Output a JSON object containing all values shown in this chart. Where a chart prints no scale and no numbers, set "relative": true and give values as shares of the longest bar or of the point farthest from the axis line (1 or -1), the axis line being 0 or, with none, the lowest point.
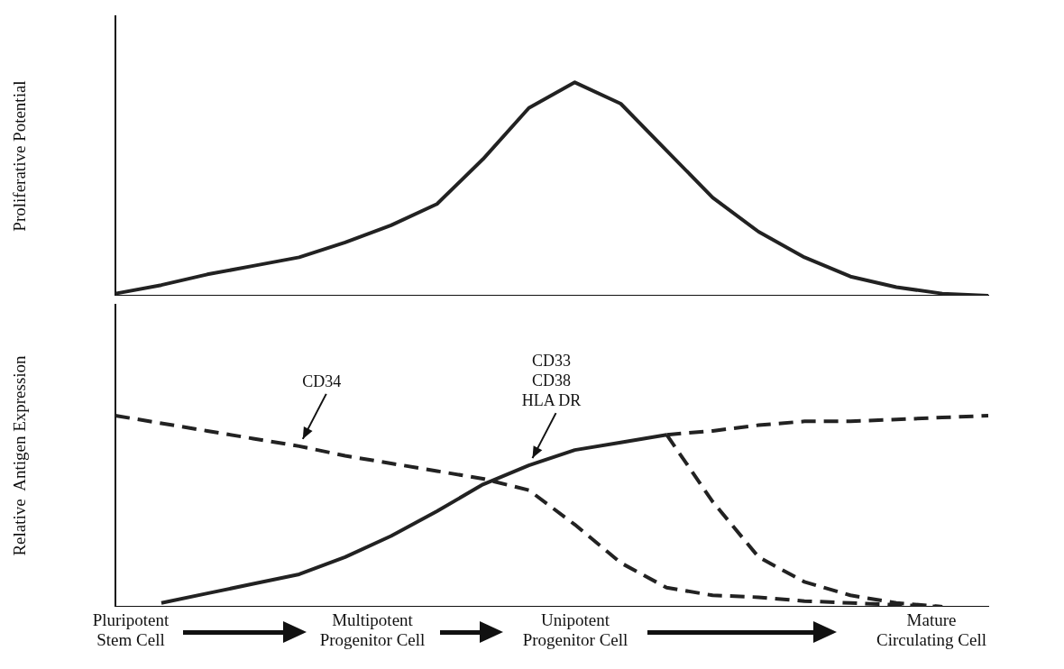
{
  "chart_data": [
    {
      "type": "line",
      "ylabel": "Proliferative Potential",
      "relative": true,
      "categories": [
        null,
        null,
        null,
        null,
        null,
        null,
        null,
        null,
        null,
        null,
        null,
        null,
        null,
        null,
        null,
        null,
        null,
        null,
        null,
        null
      ],
      "series": [
        {
          "color": "#222222",
          "line_style": "solid",
          "values": [
            0.01,
            0.05,
            0.1,
            0.14,
            0.18,
            0.25,
            0.33,
            0.43,
            0.64,
            0.88,
            1.0,
            0.9,
            0.68,
            0.46,
            0.3,
            0.18,
            0.09,
            0.04,
            0.01,
            0.0
          ]
        }
      ]
    },
    {
      "type": "line",
      "ylabel": "Relative  Antigen Expression",
      "relative": true,
      "categories": [
        null,
        null,
        null,
        null,
        null,
        null,
        null,
        null,
        null,
        null,
        null,
        null,
        null,
        null,
        null,
        null,
        null,
        null,
        null,
        null
      ],
      "series": [
        {
          "name": "CD34",
          "color": "#222222",
          "line_style": "dashed",
          "values": [
            1.0,
            0.96,
            0.92,
            0.88,
            0.84,
            0.79,
            0.75,
            0.71,
            0.67,
            0.61,
            0.43,
            0.23,
            0.1,
            0.06,
            0.05,
            0.03,
            0.02,
            0.01,
            0.0,
            null
          ]
        },
        {
          "name": "CD33\nCD38\nHLA DR",
          "color": "#222222",
          "line_style": "solid",
          "values": [
            null,
            0.02,
            0.07,
            0.12,
            0.17,
            0.26,
            0.37,
            0.5,
            0.64,
            0.74,
            0.82,
            0.86,
            0.9,
            null,
            null,
            null,
            null,
            null,
            null,
            null
          ]
        },
        {
          "color": "#222222",
          "line_style": "dashed",
          "values": [
            null,
            null,
            null,
            null,
            null,
            null,
            null,
            null,
            null,
            null,
            null,
            null,
            0.9,
            0.92,
            0.95,
            0.97,
            0.97,
            0.98,
            0.99,
            1.0
          ]
        },
        {
          "color": "#222222",
          "line_style": "dashed",
          "values": [
            null,
            null,
            null,
            null,
            null,
            null,
            null,
            null,
            null,
            null,
            null,
            null,
            0.9,
            0.55,
            0.26,
            0.13,
            0.06,
            0.02,
            0.0,
            null
          ]
        }
      ],
      "annotations": [
        "Pluripotent\nStem Cell",
        "Multipotent\nProgenitor Cell",
        "Unipotent\nProgenitor Cell",
        "Mature\nCirculating Cell"
      ]
    }
  ]
}
